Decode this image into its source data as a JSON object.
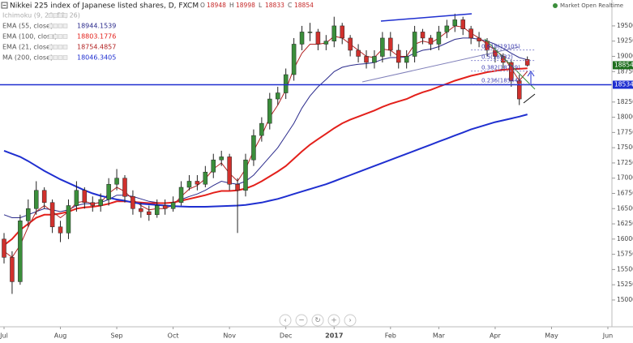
{
  "chart_data": {
    "type": "candlestick",
    "title": "Nikkei 225 index of Japanese listed shares, D, FXCM",
    "ohlc_letters": [
      "O",
      "H",
      "L",
      "C"
    ],
    "status": "Market Open Realtime",
    "categories": [
      "Jul",
      null,
      null,
      null,
      null,
      null,
      null,
      "Aug",
      null,
      null,
      null,
      null,
      null,
      null,
      "Sep",
      null,
      null,
      null,
      null,
      null,
      null,
      "Oct",
      null,
      null,
      null,
      null,
      null,
      null,
      "Nov",
      null,
      null,
      null,
      null,
      null,
      null,
      "Dec",
      null,
      null,
      null,
      null,
      null,
      "2017",
      null,
      null,
      null,
      null,
      null,
      null,
      "Feb",
      null,
      null,
      null,
      null,
      null,
      "Mar",
      null,
      null,
      null,
      null,
      null,
      null,
      "Apr",
      null,
      null,
      null,
      null,
      null,
      null,
      "May",
      null,
      null,
      null,
      null,
      null,
      null,
      "Jun"
    ],
    "open": [
      16000,
      15700,
      15300,
      16300,
      16500,
      16800,
      16600,
      16200,
      16100,
      16550,
      16800,
      16600,
      16550,
      16650,
      16900,
      17000,
      16700,
      16500,
      16450,
      16400,
      16550,
      16500,
      16600,
      16850,
      16950,
      16900,
      17100,
      17300,
      17350,
      16900,
      16800,
      17300,
      17700,
      17900,
      18300,
      18400,
      18700,
      19200,
      19400,
      19400,
      19200,
      19250,
      19500,
      19300,
      19100,
      19000,
      18900,
      19000,
      19300,
      19100,
      18900,
      19000,
      19400,
      19300,
      19200,
      19400,
      19500,
      19600,
      19450,
      19300,
      19250,
      19100,
      19000,
      18900,
      18600,
      18948,
      null,
      null,
      null,
      null,
      null,
      null,
      null,
      null,
      null,
      null
    ],
    "high": [
      16100,
      15800,
      16400,
      16650,
      16950,
      16850,
      16650,
      16300,
      16650,
      16950,
      16850,
      16700,
      16750,
      17000,
      17150,
      17050,
      16800,
      16600,
      16550,
      16650,
      16650,
      16700,
      16950,
      17050,
      17050,
      17200,
      17400,
      17450,
      17400,
      17000,
      17400,
      17800,
      18000,
      18400,
      18500,
      18800,
      19300,
      19500,
      19550,
      19450,
      19350,
      19650,
      19550,
      19350,
      19200,
      19100,
      19100,
      19400,
      19400,
      19200,
      19100,
      19500,
      19450,
      19350,
      19500,
      19600,
      19700,
      19650,
      19500,
      19400,
      19300,
      19150,
      19050,
      18950,
      18700,
      18998,
      null,
      null,
      null,
      null,
      null,
      null,
      null,
      null,
      null,
      null
    ],
    "low": [
      15600,
      15100,
      15250,
      16200,
      16400,
      16500,
      16100,
      15950,
      16000,
      16450,
      16500,
      16450,
      16450,
      16550,
      16800,
      16600,
      16400,
      16350,
      16300,
      16350,
      16400,
      16450,
      16550,
      16800,
      16800,
      16850,
      17000,
      17200,
      16800,
      16100,
      16700,
      17200,
      17600,
      17800,
      18200,
      18300,
      18600,
      19100,
      19250,
      19100,
      19100,
      19150,
      19200,
      19000,
      18900,
      18800,
      18800,
      18900,
      19000,
      18800,
      18800,
      18900,
      19200,
      19100,
      19100,
      19300,
      19400,
      19350,
      19200,
      19150,
      19000,
      18900,
      18800,
      18500,
      18200,
      18833,
      null,
      null,
      null,
      null,
      null,
      null,
      null,
      null,
      null,
      null
    ],
    "close": [
      15700,
      15300,
      16300,
      16500,
      16800,
      16600,
      16200,
      16100,
      16550,
      16800,
      16600,
      16550,
      16650,
      16900,
      17000,
      16700,
      16500,
      16450,
      16400,
      16550,
      16500,
      16600,
      16850,
      16950,
      16900,
      17100,
      17300,
      17350,
      16900,
      16800,
      17300,
      17700,
      17900,
      18300,
      18400,
      18700,
      19200,
      19400,
      19400,
      19200,
      19250,
      19500,
      19300,
      19100,
      19000,
      18900,
      19000,
      19300,
      19100,
      18900,
      19000,
      19400,
      19300,
      19200,
      19400,
      19500,
      19600,
      19450,
      19300,
      19250,
      19100,
      19000,
      18900,
      18600,
      18300,
      18854,
      null,
      null,
      null,
      null,
      null,
      null,
      null,
      null,
      null,
      null
    ],
    "up_color": "#3b8e3b",
    "down_color": "#d0312d",
    "indicator_off": "Ichimoku (9, 26, 52, 26)",
    "series": [
      {
        "name": "EMA (55, close)",
        "color": "#2b2b8c",
        "width": 1,
        "last": 18944.1539,
        "values": [
          16400,
          16350,
          16350,
          16400,
          16450,
          16500,
          16480,
          16450,
          16480,
          16550,
          16580,
          16580,
          16600,
          16650,
          16720,
          16720,
          16700,
          16660,
          16620,
          16600,
          16590,
          16600,
          16650,
          16700,
          16740,
          16800,
          16880,
          16950,
          16920,
          16900,
          16950,
          17050,
          17200,
          17350,
          17500,
          17700,
          17900,
          18150,
          18350,
          18500,
          18620,
          18750,
          18820,
          18850,
          18870,
          18880,
          18900,
          18950,
          18980,
          18980,
          18990,
          19050,
          19100,
          19120,
          19160,
          19220,
          19280,
          19300,
          19300,
          19280,
          19250,
          19200,
          19130,
          19050,
          18980,
          18944,
          null,
          null,
          null,
          null,
          null,
          null,
          null,
          null,
          null,
          null
        ]
      },
      {
        "name": "EMA (100, close)",
        "color": "#e3201b",
        "width": 2,
        "last": 18803.1776,
        "values": [
          15900,
          16000,
          16150,
          16250,
          16350,
          16400,
          16400,
          16420,
          16450,
          16500,
          16520,
          16530,
          16550,
          16580,
          16620,
          16620,
          16610,
          16600,
          16590,
          16590,
          16590,
          16600,
          16630,
          16660,
          16690,
          16720,
          16760,
          16790,
          16790,
          16800,
          16830,
          16880,
          16950,
          17030,
          17110,
          17200,
          17320,
          17440,
          17550,
          17640,
          17730,
          17820,
          17900,
          17960,
          18010,
          18060,
          18110,
          18170,
          18220,
          18260,
          18300,
          18360,
          18410,
          18450,
          18500,
          18550,
          18600,
          18640,
          18680,
          18710,
          18740,
          18760,
          18780,
          18790,
          18795,
          18803,
          null,
          null,
          null,
          null,
          null,
          null,
          null,
          null,
          null,
          null
        ]
      },
      {
        "name": "EMA (21, close)",
        "color": "#b22222",
        "width": 1,
        "last": 18754.4857,
        "values": [
          15800,
          15700,
          15900,
          16200,
          16450,
          16550,
          16450,
          16350,
          16450,
          16600,
          16620,
          16580,
          16600,
          16750,
          16850,
          16780,
          16650,
          16550,
          16480,
          16500,
          16500,
          16560,
          16700,
          16820,
          16880,
          16990,
          17150,
          17250,
          17080,
          16950,
          17150,
          17450,
          17700,
          18000,
          18200,
          18450,
          18800,
          19050,
          19200,
          19200,
          19220,
          19330,
          19300,
          19200,
          19100,
          19000,
          18980,
          19120,
          19100,
          19000,
          19000,
          19200,
          19250,
          19220,
          19300,
          19400,
          19500,
          19480,
          19380,
          19300,
          19200,
          19100,
          19000,
          18800,
          18600,
          18754,
          null,
          null,
          null,
          null,
          null,
          null,
          null,
          null,
          null,
          null
        ]
      },
      {
        "name": "MA (200, close)",
        "color": "#1f2fd0",
        "width": 2,
        "last": 18046.3405,
        "values": [
          17450,
          17400,
          17350,
          17280,
          17200,
          17120,
          17050,
          16980,
          16920,
          16860,
          16800,
          16750,
          16710,
          16680,
          16650,
          16630,
          16600,
          16580,
          16570,
          16560,
          16550,
          16540,
          16535,
          16530,
          16530,
          16530,
          16535,
          16540,
          16545,
          16550,
          16560,
          16580,
          16600,
          16630,
          16660,
          16700,
          16740,
          16780,
          16820,
          16860,
          16900,
          16950,
          17000,
          17050,
          17100,
          17150,
          17200,
          17250,
          17300,
          17350,
          17400,
          17450,
          17500,
          17550,
          17600,
          17650,
          17700,
          17750,
          17800,
          17840,
          17880,
          17920,
          17950,
          17980,
          18010,
          18046,
          null,
          null,
          null,
          null,
          null,
          null,
          null,
          null,
          null,
          null
        ]
      }
    ],
    "hline": 18534,
    "hline_color": "#1f2fd0",
    "fib_levels": [
      {
        "value": 19105,
        "label": "0.618(19105)"
      },
      {
        "value": 18932,
        "label": "0.5(18932)"
      },
      {
        "value": 18759,
        "label": "0.382(18759)"
      },
      {
        "value": 18544,
        "label": "0.236(18544)"
      }
    ],
    "ylim": [
      14560,
      19925
    ],
    "yticks": [
      19500,
      19250,
      19000,
      18750,
      18250,
      18000,
      17750,
      17500,
      17250,
      17000,
      16750,
      16500,
      16250,
      16000,
      15750,
      15500,
      15250,
      15000
    ]
  }
}
